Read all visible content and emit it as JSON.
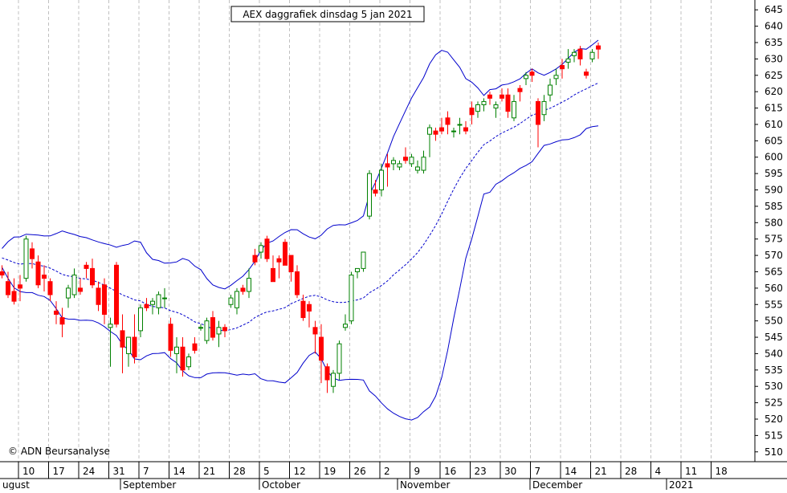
{
  "chart_data": {
    "type": "candlestick",
    "title": "AEX daggrafiek dinsdag 5 jan 2021",
    "copyright": "© ADN Beursanalyse",
    "y_range": [
      507,
      648
    ],
    "y_ticks": [
      510,
      515,
      520,
      525,
      530,
      535,
      540,
      545,
      550,
      555,
      560,
      565,
      570,
      575,
      580,
      585,
      590,
      595,
      600,
      605,
      610,
      615,
      620,
      625,
      630,
      635,
      640,
      645
    ],
    "day_ticks": [
      "10",
      "17",
      "24",
      "31",
      "7",
      "14",
      "21",
      "28",
      "5",
      "12",
      "19",
      "26",
      "2",
      "9",
      "16",
      "23",
      "30",
      "7",
      "14",
      "21",
      "28",
      "4",
      "11",
      "18"
    ],
    "month_labels": [
      "ugust",
      "September",
      "October",
      "November",
      "December",
      "2021"
    ],
    "colors": {
      "up": "#008000",
      "down": "#ff0000",
      "bands": "#0000cc",
      "grid": "#c0c0c0"
    },
    "candles": [
      [
        565,
        567,
        563,
        564
      ],
      [
        562,
        565,
        557,
        558
      ],
      [
        559,
        563,
        555,
        556
      ],
      [
        561,
        564,
        556,
        560
      ],
      [
        563,
        576,
        562,
        575
      ],
      [
        572,
        574,
        566,
        569
      ],
      [
        568,
        570,
        560,
        561
      ],
      [
        564,
        567,
        559,
        563
      ],
      [
        562,
        563,
        556,
        558
      ],
      [
        553,
        556,
        549,
        552
      ],
      [
        551,
        554,
        545,
        549
      ],
      [
        557,
        561,
        554,
        560
      ],
      [
        558,
        566,
        557,
        564
      ],
      [
        560,
        563,
        558,
        559
      ],
      [
        567,
        568,
        563,
        566
      ],
      [
        566,
        569,
        560,
        561
      ],
      [
        560,
        562,
        553,
        555
      ],
      [
        561,
        563,
        549,
        552
      ],
      [
        548,
        551,
        536,
        549
      ],
      [
        567,
        568,
        548,
        549
      ],
      [
        547,
        552,
        534,
        542
      ],
      [
        540,
        545,
        536,
        545
      ],
      [
        545,
        552,
        537,
        539
      ],
      [
        547,
        555,
        545,
        554
      ],
      [
        555,
        557,
        553,
        554
      ],
      [
        555,
        557,
        552,
        556
      ],
      [
        554,
        559,
        552,
        558
      ],
      [
        557,
        560,
        554,
        557
      ],
      [
        549,
        551,
        539,
        541
      ],
      [
        540,
        545,
        534,
        542
      ],
      [
        542,
        545,
        533,
        535
      ],
      [
        536,
        540,
        535,
        539
      ],
      [
        543,
        545,
        540,
        541
      ],
      [
        548,
        549,
        547,
        548
      ],
      [
        544,
        551,
        543,
        550
      ],
      [
        551,
        553,
        544,
        545
      ],
      [
        546,
        550,
        542,
        548
      ],
      [
        548,
        549,
        545,
        547
      ],
      [
        555,
        558,
        554,
        557
      ],
      [
        554,
        560,
        552,
        559
      ],
      [
        560,
        561,
        558,
        559
      ],
      [
        559,
        566,
        557,
        563
      ],
      [
        570,
        572,
        567,
        568
      ],
      [
        571,
        574,
        569,
        573
      ],
      [
        575,
        576,
        568,
        569
      ],
      [
        566,
        570,
        562,
        562
      ],
      [
        569,
        570,
        563,
        568
      ],
      [
        574,
        575,
        567,
        567
      ],
      [
        570,
        570,
        562,
        565
      ],
      [
        565,
        567,
        557,
        558
      ],
      [
        556,
        558,
        550,
        551
      ],
      [
        555,
        556,
        548,
        553
      ],
      [
        548,
        550,
        540,
        546
      ],
      [
        545,
        549,
        531,
        538
      ],
      [
        536,
        537,
        528,
        532
      ],
      [
        530,
        535,
        528,
        534
      ],
      [
        534,
        544,
        532,
        543
      ],
      [
        548,
        552,
        547,
        549
      ],
      [
        550,
        565,
        549,
        564
      ],
      [
        565,
        566,
        563,
        566
      ],
      [
        566,
        571,
        565,
        571
      ],
      [
        582,
        596,
        581,
        595
      ],
      [
        590,
        593,
        588,
        589
      ],
      [
        590,
        598,
        588,
        596
      ],
      [
        598,
        601,
        591,
        597
      ],
      [
        598,
        600,
        596,
        599
      ],
      [
        597,
        599,
        596,
        598
      ],
      [
        600,
        603,
        598,
        599
      ],
      [
        598,
        601,
        597,
        600
      ],
      [
        596,
        599,
        595,
        597
      ],
      [
        596,
        602,
        595,
        600
      ],
      [
        607,
        610,
        600,
        609
      ],
      [
        608,
        609,
        605,
        607
      ],
      [
        609,
        612,
        607,
        608
      ],
      [
        612,
        614,
        607,
        610
      ],
      [
        608,
        609,
        606,
        608
      ],
      [
        610,
        612,
        607,
        610
      ],
      [
        609,
        611,
        607,
        608
      ],
      [
        615,
        617,
        610,
        613
      ],
      [
        614,
        617,
        612,
        616
      ],
      [
        616,
        618,
        614,
        617
      ],
      [
        619,
        620,
        616,
        618
      ],
      [
        615,
        617,
        612,
        616
      ],
      [
        619,
        621,
        617,
        618
      ],
      [
        619,
        621,
        612,
        614
      ],
      [
        612,
        619,
        611,
        617
      ],
      [
        621,
        622,
        617,
        620
      ],
      [
        624,
        626,
        622,
        625
      ],
      [
        626,
        627,
        623,
        625
      ],
      [
        617,
        618,
        603,
        610
      ],
      [
        613,
        619,
        611,
        617
      ],
      [
        619,
        624,
        617,
        622
      ],
      [
        624,
        627,
        622,
        625
      ],
      [
        628,
        630,
        624,
        627
      ],
      [
        629,
        633,
        627,
        630
      ],
      [
        631,
        633,
        629,
        632
      ],
      [
        633,
        634,
        628,
        630
      ],
      [
        626,
        627,
        624,
        625
      ],
      [
        630,
        633,
        629,
        632
      ],
      [
        634,
        635,
        630,
        633
      ]
    ]
  }
}
